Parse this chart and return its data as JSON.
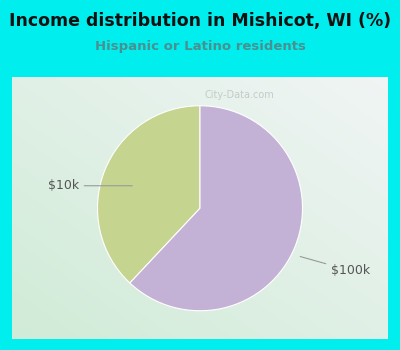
{
  "title": "Income distribution in Mishicot, WI (%)",
  "subtitle": "Hispanic or Latino residents",
  "title_color": "#111111",
  "subtitle_color": "#4a9090",
  "background_color": "#00EEEE",
  "chart_bg_top_right": "#e8f0f0",
  "chart_bg_bottom_left": "#d0ecd8",
  "slices": [
    {
      "label": "$10k",
      "value": 38,
      "color": "#C5D48E"
    },
    {
      "label": "$100k",
      "value": 62,
      "color": "#C4B2D6"
    }
  ],
  "startangle": 90,
  "watermark": "City-Data.com",
  "annotation_color": "#555555",
  "annotation_line_color": "#999999"
}
